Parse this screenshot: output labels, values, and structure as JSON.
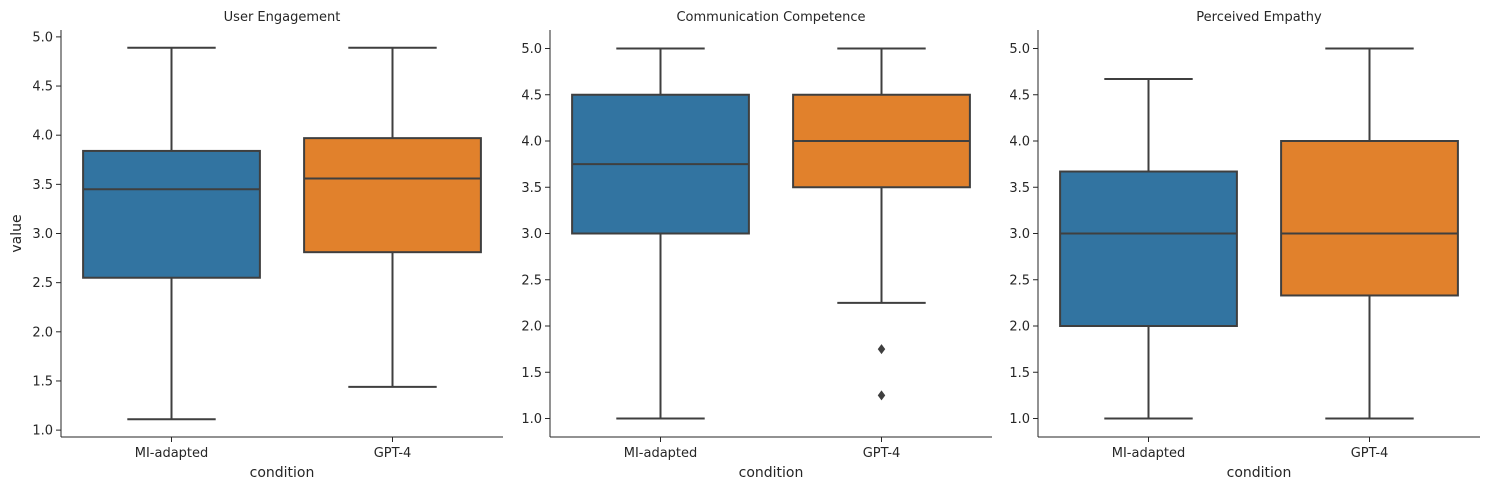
{
  "chart_data": [
    {
      "type": "box",
      "title": "User Engagement",
      "xlabel": "condition",
      "ylabel": "value",
      "categories": [
        "MI-adapted",
        "GPT-4"
      ],
      "ylim": [
        0.93,
        5.07
      ],
      "yticks": [
        "1.0",
        "1.5",
        "2.0",
        "2.5",
        "3.0",
        "3.5",
        "4.0",
        "4.5",
        "5.0"
      ],
      "boxes": [
        {
          "name": "MI-adapted",
          "whisker_low": 1.11,
          "q1": 2.55,
          "median": 3.45,
          "q3": 3.84,
          "whisker_high": 4.89,
          "outliers": []
        },
        {
          "name": "GPT-4",
          "whisker_low": 1.44,
          "q1": 2.81,
          "median": 3.56,
          "q3": 3.97,
          "whisker_high": 4.89,
          "outliers": []
        }
      ]
    },
    {
      "type": "box",
      "title": "Communication Competence",
      "xlabel": "condition",
      "ylabel": "",
      "categories": [
        "MI-adapted",
        "GPT-4"
      ],
      "ylim": [
        0.8,
        5.2
      ],
      "yticks": [
        "1.0",
        "1.5",
        "2.0",
        "2.5",
        "3.0",
        "3.5",
        "4.0",
        "4.5",
        "5.0"
      ],
      "boxes": [
        {
          "name": "MI-adapted",
          "whisker_low": 1.0,
          "q1": 3.0,
          "median": 3.75,
          "q3": 4.5,
          "whisker_high": 5.0,
          "outliers": []
        },
        {
          "name": "GPT-4",
          "whisker_low": 2.25,
          "q1": 3.5,
          "median": 4.0,
          "q3": 4.5,
          "whisker_high": 5.0,
          "outliers": [
            1.75,
            1.25
          ]
        }
      ]
    },
    {
      "type": "box",
      "title": "Perceived Empathy",
      "xlabel": "condition",
      "ylabel": "",
      "categories": [
        "MI-adapted",
        "GPT-4"
      ],
      "ylim": [
        0.8,
        5.2
      ],
      "yticks": [
        "1.0",
        "1.5",
        "2.0",
        "2.5",
        "3.0",
        "3.5",
        "4.0",
        "4.5",
        "5.0"
      ],
      "boxes": [
        {
          "name": "MI-adapted",
          "whisker_low": 1.0,
          "q1": 2.0,
          "median": 3.0,
          "q3": 3.67,
          "whisker_high": 4.67,
          "outliers": []
        },
        {
          "name": "GPT-4",
          "whisker_low": 1.0,
          "q1": 2.33,
          "median": 3.0,
          "q3": 4.0,
          "whisker_high": 5.0,
          "outliers": []
        }
      ]
    }
  ],
  "colors": {
    "MI-adapted": "#3274a1",
    "GPT-4": "#e1812c",
    "line": "#3f3f3f",
    "axis": "#262626"
  }
}
